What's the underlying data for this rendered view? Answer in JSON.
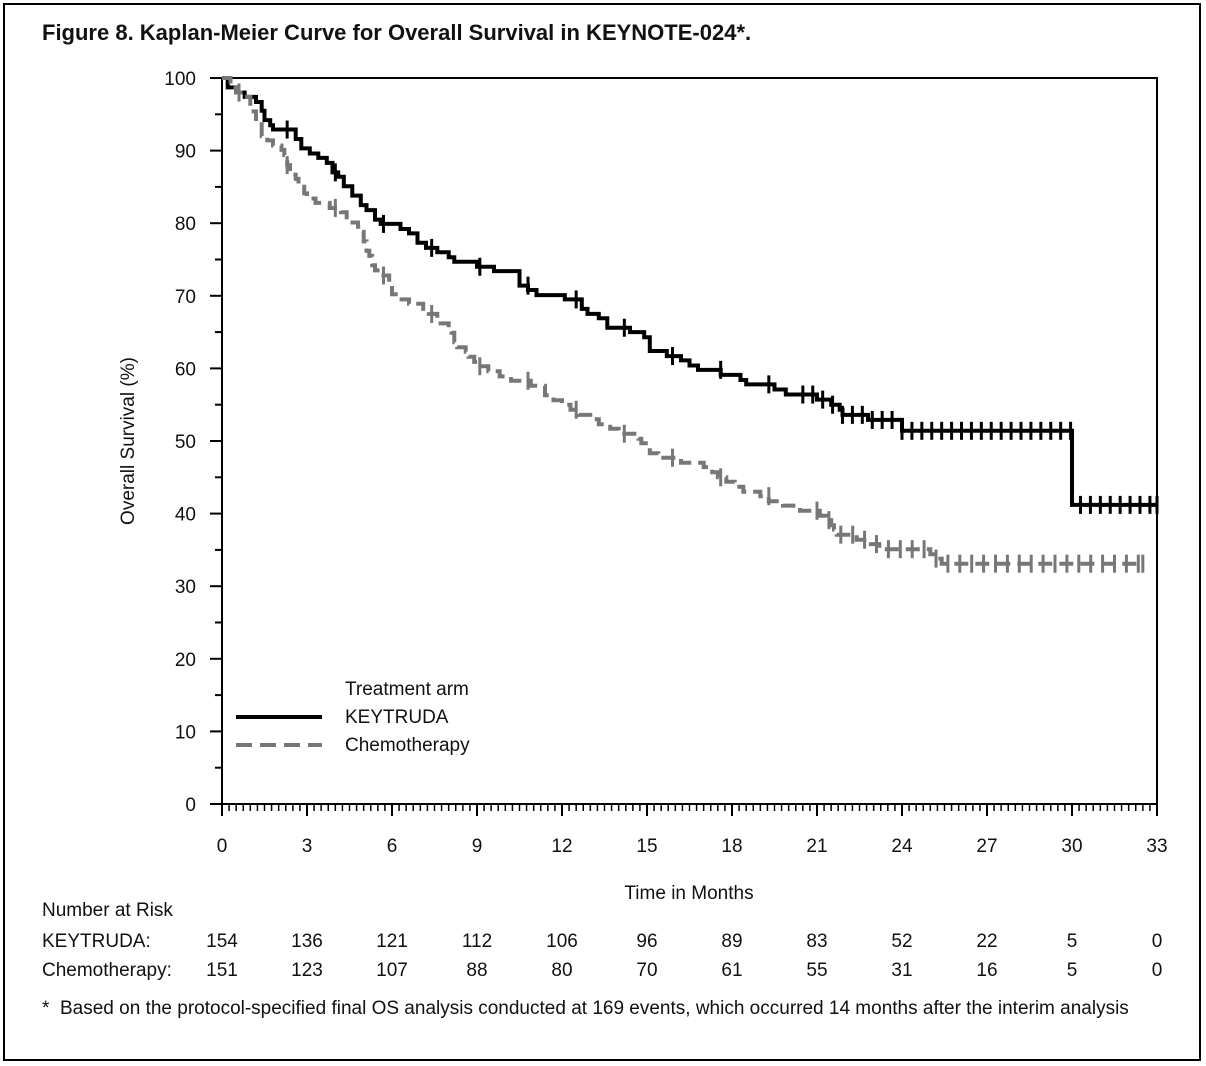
{
  "title": "Figure 8. Kaplan-Meier Curve for Overall Survival in KEYNOTE-024*.",
  "chart_data": {
    "type": "line",
    "subtype": "kaplan-meier",
    "xlabel": "Time in Months",
    "ylabel": "Overall Survival (%)",
    "xlim": [
      0,
      33
    ],
    "ylim": [
      0,
      100
    ],
    "x_ticks": [
      0,
      3,
      6,
      9,
      12,
      15,
      18,
      21,
      24,
      27,
      30,
      33
    ],
    "y_ticks": [
      0,
      10,
      20,
      30,
      40,
      50,
      60,
      70,
      80,
      90,
      100
    ],
    "legend": {
      "title": "Treatment arm",
      "placement": "lower-left"
    },
    "series": [
      {
        "name": "KEYTRUDA",
        "color": "#000000",
        "style": "solid",
        "steps": [
          [
            0,
            100
          ],
          [
            0.2,
            98.7
          ],
          [
            0.5,
            98.0
          ],
          [
            0.8,
            97.4
          ],
          [
            1.2,
            96.7
          ],
          [
            1.4,
            95.5
          ],
          [
            1.5,
            94.2
          ],
          [
            1.7,
            93.5
          ],
          [
            1.8,
            92.9
          ],
          [
            2.6,
            91.6
          ],
          [
            2.8,
            90.3
          ],
          [
            3.1,
            89.6
          ],
          [
            3.4,
            89.0
          ],
          [
            3.7,
            88.3
          ],
          [
            3.9,
            87.0
          ],
          [
            4.1,
            86.4
          ],
          [
            4.3,
            85.1
          ],
          [
            4.6,
            83.8
          ],
          [
            4.9,
            82.5
          ],
          [
            5.1,
            81.8
          ],
          [
            5.4,
            80.5
          ],
          [
            5.6,
            79.9
          ],
          [
            6.3,
            79.2
          ],
          [
            6.6,
            78.6
          ],
          [
            6.9,
            77.3
          ],
          [
            7.2,
            76.6
          ],
          [
            7.6,
            76.0
          ],
          [
            8.0,
            75.3
          ],
          [
            8.2,
            74.7
          ],
          [
            9.0,
            74.0
          ],
          [
            9.6,
            73.4
          ],
          [
            10.5,
            71.4
          ],
          [
            10.8,
            70.8
          ],
          [
            11.1,
            70.1
          ],
          [
            12.1,
            69.5
          ],
          [
            12.7,
            68.2
          ],
          [
            12.9,
            67.5
          ],
          [
            13.3,
            66.9
          ],
          [
            13.6,
            65.6
          ],
          [
            14.4,
            65.0
          ],
          [
            14.9,
            64.3
          ],
          [
            15.1,
            62.4
          ],
          [
            15.7,
            61.7
          ],
          [
            16.2,
            61.1
          ],
          [
            16.5,
            60.4
          ],
          [
            16.8,
            59.8
          ],
          [
            17.6,
            59.1
          ],
          [
            18.3,
            58.4
          ],
          [
            18.5,
            57.8
          ],
          [
            19.5,
            57.1
          ],
          [
            19.9,
            56.4
          ],
          [
            21.0,
            55.7
          ],
          [
            21.5,
            55.0
          ],
          [
            21.8,
            54.3
          ],
          [
            21.9,
            53.6
          ],
          [
            22.8,
            52.9
          ],
          [
            24.0,
            51.4
          ],
          [
            30.0,
            41.2
          ]
        ],
        "end_x": 33
      },
      {
        "name": "Chemotherapy",
        "color": "#777777",
        "style": "dashed",
        "steps": [
          [
            0,
            100
          ],
          [
            0.3,
            98.7
          ],
          [
            0.5,
            98.0
          ],
          [
            0.8,
            97.4
          ],
          [
            1.0,
            95.4
          ],
          [
            1.2,
            94.0
          ],
          [
            1.4,
            92.0
          ],
          [
            1.6,
            91.4
          ],
          [
            1.8,
            90.7
          ],
          [
            2.1,
            90.1
          ],
          [
            2.2,
            89.4
          ],
          [
            2.3,
            88.0
          ],
          [
            2.4,
            86.7
          ],
          [
            2.6,
            86.1
          ],
          [
            2.7,
            85.4
          ],
          [
            2.9,
            84.1
          ],
          [
            3.0,
            83.4
          ],
          [
            3.3,
            82.8
          ],
          [
            3.8,
            82.1
          ],
          [
            4.2,
            81.5
          ],
          [
            4.4,
            80.8
          ],
          [
            4.5,
            80.1
          ],
          [
            4.8,
            79.5
          ],
          [
            4.9,
            78.8
          ],
          [
            5.0,
            77.5
          ],
          [
            5.1,
            76.2
          ],
          [
            5.2,
            75.5
          ],
          [
            5.3,
            74.2
          ],
          [
            5.4,
            73.5
          ],
          [
            5.6,
            72.8
          ],
          [
            5.9,
            71.5
          ],
          [
            6.0,
            70.2
          ],
          [
            6.2,
            69.5
          ],
          [
            6.6,
            68.9
          ],
          [
            7.1,
            68.2
          ],
          [
            7.3,
            67.5
          ],
          [
            7.6,
            66.2
          ],
          [
            8.0,
            65.6
          ],
          [
            8.1,
            64.9
          ],
          [
            8.2,
            63.6
          ],
          [
            8.3,
            62.9
          ],
          [
            8.6,
            62.3
          ],
          [
            8.7,
            61.6
          ],
          [
            8.9,
            60.9
          ],
          [
            9.1,
            60.3
          ],
          [
            9.4,
            59.6
          ],
          [
            9.8,
            58.9
          ],
          [
            10.2,
            58.3
          ],
          [
            10.9,
            57.6
          ],
          [
            11.4,
            56.3
          ],
          [
            11.7,
            55.6
          ],
          [
            12.0,
            55.0
          ],
          [
            12.3,
            54.3
          ],
          [
            12.6,
            53.6
          ],
          [
            13.0,
            53.0
          ],
          [
            13.3,
            52.3
          ],
          [
            13.7,
            51.7
          ],
          [
            14.0,
            51.0
          ],
          [
            14.7,
            50.3
          ],
          [
            14.8,
            49.7
          ],
          [
            15.1,
            48.3
          ],
          [
            15.4,
            47.7
          ],
          [
            16.2,
            47.0
          ],
          [
            17.0,
            46.4
          ],
          [
            17.3,
            45.7
          ],
          [
            17.5,
            45.0
          ],
          [
            17.8,
            44.4
          ],
          [
            18.1,
            43.7
          ],
          [
            18.4,
            43.0
          ],
          [
            19.0,
            42.4
          ],
          [
            19.3,
            41.7
          ],
          [
            19.8,
            41.1
          ],
          [
            20.4,
            40.4
          ],
          [
            21.1,
            39.7
          ],
          [
            21.3,
            39.1
          ],
          [
            21.5,
            38.4
          ],
          [
            21.6,
            37.8
          ],
          [
            21.7,
            37.1
          ],
          [
            22.4,
            36.4
          ],
          [
            22.9,
            35.8
          ],
          [
            23.2,
            35.1
          ],
          [
            25.0,
            34.4
          ],
          [
            25.2,
            33.8
          ],
          [
            25.4,
            33.1
          ]
        ],
        "end_x": 32.5
      }
    ]
  },
  "risk_table": {
    "title": "Number at Risk",
    "rows": [
      {
        "label": "KEYTRUDA:",
        "values": [
          "154",
          "136",
          "121",
          "112",
          "106",
          "96",
          "89",
          "83",
          "52",
          "22",
          "5",
          "0"
        ]
      },
      {
        "label": "Chemotherapy:",
        "values": [
          "151",
          "123",
          "107",
          "88",
          "80",
          "70",
          "61",
          "55",
          "31",
          "16",
          "5",
          "0"
        ]
      }
    ]
  },
  "footnote": {
    "symbol": "*",
    "text": "Based on the protocol-specified final OS analysis conducted at 169 events, which occurred 14 months after the interim analysis"
  }
}
